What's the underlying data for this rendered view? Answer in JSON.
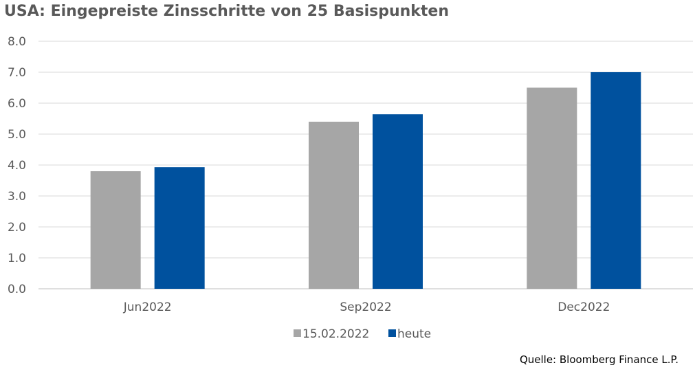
{
  "chart_data": {
    "type": "bar",
    "title": "USA: Eingepreiste Zinsschritte von 25 Basispunkten",
    "source": "Quelle: Bloomberg Finance L.P.",
    "categories": [
      "Jun2022",
      "Sep2022",
      "Dec2022"
    ],
    "series": [
      {
        "name": "15.02.2022",
        "values": [
          3.8,
          5.4,
          6.5
        ],
        "color": "#a6a6a6"
      },
      {
        "name": "heute",
        "values": [
          3.93,
          5.64,
          7.0
        ],
        "color": "#00519e"
      }
    ],
    "ylim": [
      0,
      8
    ],
    "yticks": [
      "0.0",
      "1.0",
      "2.0",
      "3.0",
      "4.0",
      "5.0",
      "6.0",
      "7.0",
      "8.0"
    ],
    "grid": true,
    "legend": "bottom"
  }
}
